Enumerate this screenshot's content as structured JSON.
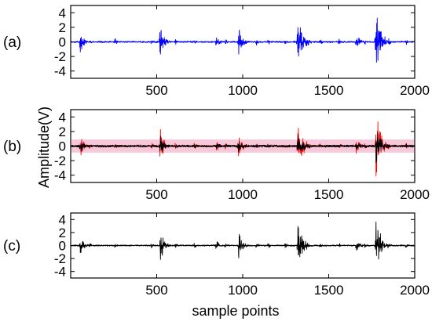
{
  "figure": {
    "ylabel": "Amplitude(V)",
    "xlabel": "sample points"
  },
  "colors": {
    "panel_a": "#0000ff",
    "panel_b": "#ff0000",
    "panel_b_band": "#f7c8da",
    "panel_c": "#000000"
  },
  "chart_data": [
    {
      "type": "line",
      "panel_label": "(a)",
      "series": [
        {
          "color": "#0000ff",
          "description": "noisy vibration signal with transient bursts",
          "bursts": [
            {
              "center": 55,
              "amplitude": 1.7
            },
            {
              "center": 520,
              "amplitude": 3.0
            },
            {
              "center": 845,
              "amplitude": 1.0
            },
            {
              "center": 975,
              "amplitude": 2.5
            },
            {
              "center": 1320,
              "amplitude": 4.2
            },
            {
              "center": 1660,
              "amplitude": 1.2
            },
            {
              "center": 1775,
              "amplitude": 5.0
            }
          ]
        }
      ],
      "xlim": [
        0,
        2000
      ],
      "ylim": [
        -5,
        5
      ],
      "xticks": [
        500,
        1000,
        1500,
        2000
      ],
      "yticks": [
        4,
        2,
        0,
        -2,
        -4
      ]
    },
    {
      "type": "line",
      "panel_label": "(b)",
      "series": [
        {
          "color": "#ff0000"
        },
        {
          "color": "#000000"
        }
      ],
      "xlim": [
        0,
        2000
      ],
      "ylim": [
        -5,
        5
      ],
      "xticks": [
        500,
        1000,
        1500,
        2000
      ],
      "yticks": [
        4,
        2,
        0,
        -2,
        -4
      ]
    },
    {
      "type": "line",
      "panel_label": "(c)",
      "series": [
        {
          "color": "#000000"
        }
      ],
      "xlim": [
        0,
        2000
      ],
      "ylim": [
        -5,
        5
      ],
      "xticks": [
        500,
        1000,
        1500,
        2000
      ],
      "yticks": [
        4,
        2,
        0,
        -2,
        -4
      ]
    }
  ]
}
